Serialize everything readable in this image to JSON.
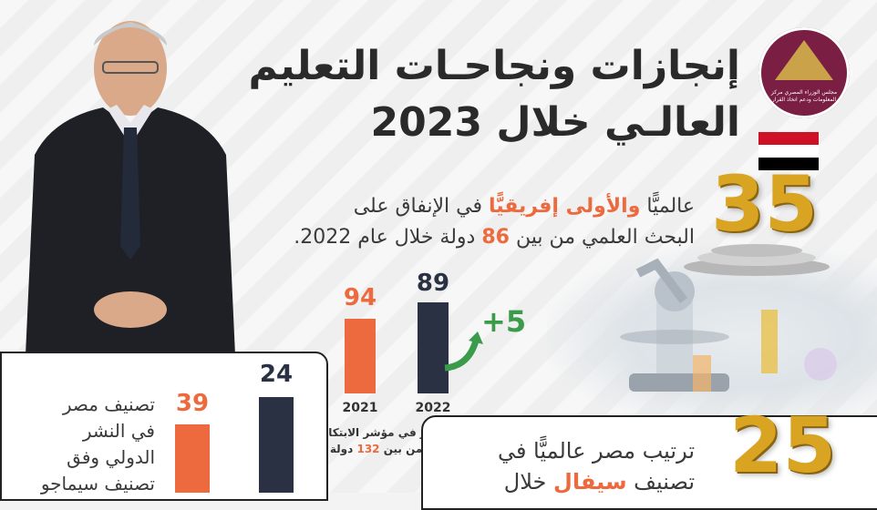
{
  "title": {
    "line1": "إنجازات ونجاحـات التعليم",
    "line2": "العالـي خلال 2023"
  },
  "logo": {
    "text": "مجلس الوزراء المصري مركز المعلومات ودعم اتخاذ القرار"
  },
  "flag_colors": [
    "#ce1126",
    "#ffffff",
    "#000000"
  ],
  "stat1": {
    "number": "35",
    "line1_a": "عالميًّا ",
    "line1_b": "والأولى",
    "line1_c": " إفريقيًّا",
    "line1_d": " في الإنفاق على",
    "line2_a": "البحث العلمي من بين ",
    "line2_b": "86",
    "line2_c": " دولة خلال عام 2022."
  },
  "innovation": {
    "bars": [
      {
        "year": "2021",
        "value": "94",
        "color": "#ed6a3e"
      },
      {
        "year": "2022",
        "value": "89",
        "color": "#2a3142"
      }
    ],
    "change": "+5",
    "caption_a": "تقدم مصر في مؤشر الابتكار",
    "caption_b": "العالمي من بين ",
    "caption_c": "132",
    "caption_d": " دولة"
  },
  "scimago": {
    "text_lines": [
      "تصنيف مصر",
      "في النشر",
      "الدولي وفق",
      "تصنيف سيماجو"
    ],
    "bars": [
      {
        "value": "39",
        "color": "#ed6a3e"
      },
      {
        "value": "24",
        "color": "#2a3142"
      }
    ]
  },
  "stat2": {
    "number": "25",
    "line1": "ترتيب مصر عالميًّا في",
    "line2_a": "تصنيف ",
    "line2_b": "سيفال",
    "line2_c": " خلال"
  },
  "accent_colors": {
    "orange": "#ed6a3e",
    "dark": "#2a3142",
    "gold": "#d9a421",
    "green": "#3a9b4a"
  }
}
